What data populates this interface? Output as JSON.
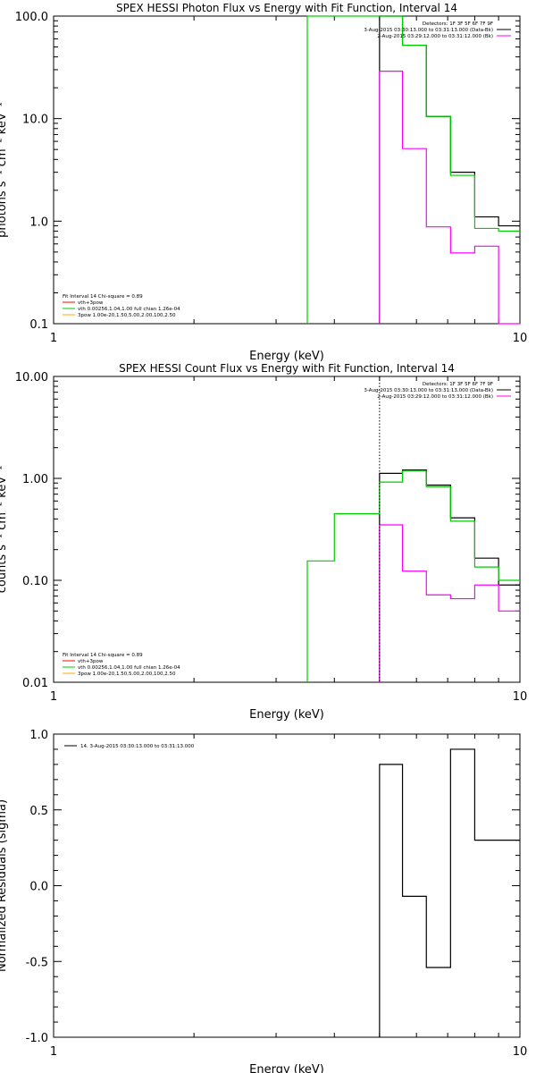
{
  "colors": {
    "data": "#000000",
    "fit": "#00cc00",
    "background": "#ff00ff",
    "component": "#ff0000",
    "pileup": "#ffaa00"
  },
  "chart_data": [
    {
      "type": "line",
      "title": "SPEX HESSI Photon Flux vs Energy with Fit Function, Interval 14",
      "xlabel": "Energy (keV)",
      "ylabel": "photons s⁻¹ cm⁻² keV⁻¹",
      "xscale": "log",
      "yscale": "log",
      "xlim": [
        1,
        10
      ],
      "ylim": [
        0.1,
        100
      ],
      "x_ticks": [
        {
          "v": 1,
          "label": "1"
        },
        {
          "v": 10,
          "label": "10"
        }
      ],
      "y_ticks": [
        {
          "v": 0.1,
          "label": "0.1"
        },
        {
          "v": 1,
          "label": "1.0"
        },
        {
          "v": 10,
          "label": "10.0"
        },
        {
          "v": 100,
          "label": "100.0"
        }
      ],
      "legend_top": [
        {
          "text": "Detectors: 1F 3F 5F 6F 7F 9F",
          "swatch": ""
        },
        {
          "text": "3-Aug-2015 03:30:13.000 to 03:31:13.000 (Data-Bk)",
          "swatch": "#000000"
        },
        {
          "text": "2-Aug-2015 03:29:12.000 to 03:31:12.000 (Bk)",
          "swatch": "#ff00ff"
        }
      ],
      "legend_bottom": [
        {
          "text": "Fit Interval 14   Chi-square = 0.89",
          "swatch": ""
        },
        {
          "text": "vth+3pow",
          "swatch": "#ff0000"
        },
        {
          "text": "vth 0.00256,1.04,1.00  full chian 1.26e-04",
          "swatch": "#00cc00"
        },
        {
          "text": "3pow 1.00e-20,1.50,5.00,2.00,100,2.50",
          "swatch": "#ffaa00"
        }
      ],
      "series": [
        {
          "name": "Data-Bk",
          "color": "#000000",
          "edges": [
            5.0,
            5.6,
            6.3,
            7.1,
            8.0,
            9.0,
            10.0
          ],
          "values": [
            100,
            52,
            10.5,
            3.0,
            1.1,
            0.9
          ]
        },
        {
          "name": "Bk",
          "color": "#ff00ff",
          "edges": [
            5.0,
            5.6,
            6.3,
            7.1,
            8.0,
            9.0,
            10.0
          ],
          "values": [
            29,
            5.1,
            0.88,
            0.49,
            0.57,
            0.1
          ]
        },
        {
          "name": "vth",
          "color": "#00cc00",
          "edges": [
            3.5,
            5.0,
            5.6,
            6.3,
            7.1,
            8.0,
            9.0,
            10.0
          ],
          "values": [
            100,
            100,
            52,
            10.5,
            2.8,
            0.85,
            0.8
          ]
        }
      ],
      "vlines": []
    },
    {
      "type": "line",
      "title": "SPEX HESSI Count Flux vs Energy with Fit Function, Interval 14",
      "xlabel": "Energy (keV)",
      "ylabel": "counts s⁻¹ cm⁻² keV⁻¹",
      "xscale": "log",
      "yscale": "log",
      "xlim": [
        1,
        10
      ],
      "ylim": [
        0.01,
        10
      ],
      "x_ticks": [
        {
          "v": 1,
          "label": "1"
        },
        {
          "v": 10,
          "label": "10"
        }
      ],
      "y_ticks": [
        {
          "v": 0.01,
          "label": "0.01"
        },
        {
          "v": 0.1,
          "label": "0.10"
        },
        {
          "v": 1,
          "label": "1.00"
        },
        {
          "v": 10,
          "label": "10.00"
        }
      ],
      "legend_top": [
        {
          "text": "Detectors: 1F 3F 5F 6F 7F 9F",
          "swatch": ""
        },
        {
          "text": "3-Aug-2015 03:30:13.000 to 03:31:13.000 (Data-Bk)",
          "swatch": "#000000"
        },
        {
          "text": "2-Aug-2015 03:29:12.000 to 03:31:12.000 (Bk)",
          "swatch": "#ff00ff"
        }
      ],
      "legend_bottom": [
        {
          "text": "Fit Interval 14   Chi-square = 0.89",
          "swatch": ""
        },
        {
          "text": "vth+3pow",
          "swatch": "#ff0000"
        },
        {
          "text": "vth 0.00256,1.04,1.00  full chian 1.26e-04",
          "swatch": "#00cc00"
        },
        {
          "text": "3pow 1.00e-20,1.50,5.00,2.00,100,2.50",
          "swatch": "#ffaa00"
        }
      ],
      "series": [
        {
          "name": "Data-Bk",
          "color": "#000000",
          "edges": [
            5.0,
            5.6,
            6.3,
            7.1,
            8.0,
            9.0,
            10.0
          ],
          "values": [
            1.12,
            1.21,
            0.86,
            0.41,
            0.165,
            0.09
          ]
        },
        {
          "name": "Bk",
          "color": "#ff00ff",
          "edges": [
            5.0,
            5.6,
            6.3,
            7.1,
            8.0,
            9.0,
            10.0
          ],
          "values": [
            0.35,
            0.123,
            0.072,
            0.066,
            0.09,
            0.05
          ]
        },
        {
          "name": "vth",
          "color": "#00cc00",
          "edges": [
            3.5,
            4.0,
            5.0,
            5.6,
            6.3,
            7.1,
            8.0,
            9.0,
            10.0
          ],
          "values": [
            0.155,
            0.45,
            0.92,
            1.18,
            0.83,
            0.38,
            0.135,
            0.1
          ]
        }
      ],
      "vlines": [
        {
          "x": 5.0,
          "style": "dotted",
          "color": "#000000"
        }
      ]
    },
    {
      "type": "line",
      "title": "",
      "xlabel": "Energy (keV)",
      "ylabel": "Normalized Residuals (sigma)",
      "xscale": "log",
      "yscale": "linear",
      "xlim": [
        1,
        10
      ],
      "ylim": [
        -1.0,
        1.0
      ],
      "x_ticks": [
        {
          "v": 1,
          "label": "1"
        },
        {
          "v": 10,
          "label": "10"
        }
      ],
      "y_ticks": [
        {
          "v": -1.0,
          "label": "-1.0"
        },
        {
          "v": -0.5,
          "label": "-0.5"
        },
        {
          "v": 0.0,
          "label": "0.0"
        },
        {
          "v": 0.5,
          "label": "0.5"
        },
        {
          "v": 1.0,
          "label": "1.0"
        }
      ],
      "legend_top_left": [
        {
          "text": "14.  3-Aug-2015 03:30:13.000 to 03:31:13.000",
          "swatch": "#000000"
        }
      ],
      "series": [
        {
          "name": "14.",
          "color": "#000000",
          "edges": [
            5.0,
            5.6,
            6.3,
            7.1,
            8.0,
            9.0,
            10.0
          ],
          "values": [
            0.8,
            -0.07,
            -0.54,
            0.9,
            0.3,
            0.3
          ],
          "start_from_bottom": true
        }
      ],
      "vlines": []
    }
  ]
}
